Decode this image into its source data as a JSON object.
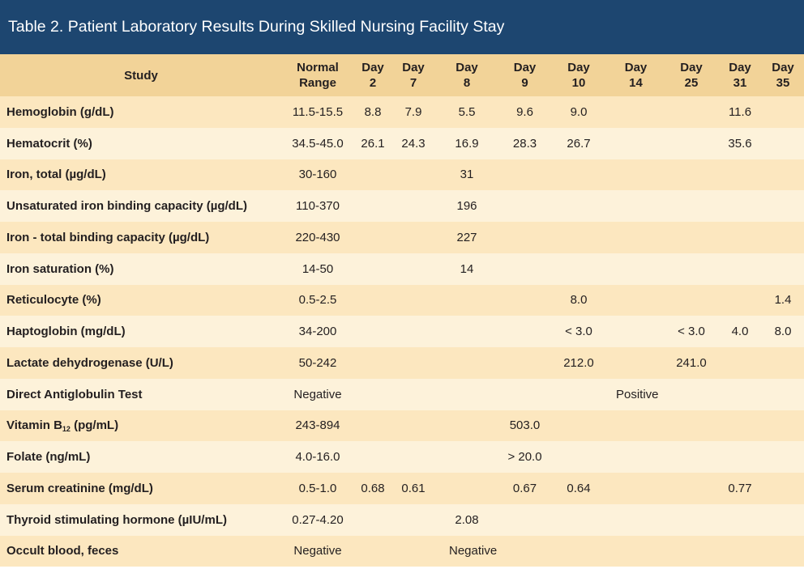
{
  "title": "Table 2. Patient Laboratory Results During Skilled Nursing Facility Stay",
  "headers": {
    "study": "Study",
    "normal1": "Normal",
    "normal2": "Range",
    "days": [
      {
        "top": "Day",
        "num": "2"
      },
      {
        "top": "Day",
        "num": "7"
      },
      {
        "top": "Day",
        "num": "8"
      },
      {
        "top": "Day",
        "num": "9"
      },
      {
        "top": "Day",
        "num": "10"
      },
      {
        "top": "Day",
        "num": "14"
      },
      {
        "top": "Day",
        "num": "25"
      },
      {
        "top": "Day",
        "num": "31"
      },
      {
        "top": "Day",
        "num": "35"
      }
    ]
  },
  "rows": [
    {
      "study": "Hemoglobin (g/dL)",
      "range": "11.5-15.5",
      "vals": [
        "8.8",
        "7.9",
        "5.5",
        "9.6",
        "9.0",
        "",
        "",
        "11.6",
        ""
      ]
    },
    {
      "study": "Hematocrit (%)",
      "range": "34.5-45.0",
      "vals": [
        "26.1",
        "24.3",
        "16.9",
        "28.3",
        "26.7",
        "",
        "",
        "35.6",
        ""
      ]
    },
    {
      "study": "Iron, total (µg/dL)",
      "range": "30-160",
      "vals": [
        "",
        "",
        "31",
        "",
        "",
        "",
        "",
        "",
        ""
      ]
    },
    {
      "study": "Unsaturated iron binding capacity (µg/dL)",
      "range": "110-370",
      "vals": [
        "",
        "",
        "196",
        "",
        "",
        "",
        "",
        "",
        ""
      ]
    },
    {
      "study": "Iron - total binding capacity (µg/dL)",
      "range": "220-430",
      "vals": [
        "",
        "",
        "227",
        "",
        "",
        "",
        "",
        "",
        ""
      ]
    },
    {
      "study": "Iron saturation (%)",
      "range": "14-50",
      "vals": [
        "",
        "",
        "14",
        "",
        "",
        "",
        "",
        "",
        ""
      ]
    },
    {
      "study": "Reticulocyte (%)",
      "range": "0.5-2.5",
      "vals": [
        "",
        "",
        "",
        "",
        "8.0",
        "",
        "",
        "",
        "1.4"
      ]
    },
    {
      "study": "Haptoglobin (mg/dL)",
      "range": "34-200",
      "vals": [
        "",
        "",
        "",
        "",
        "< 3.0",
        "",
        "< 3.0",
        "4.0",
        "8.0"
      ]
    },
    {
      "study": "Lactate dehydrogenase (U/L)",
      "range": "50-242",
      "vals": [
        "",
        "",
        "",
        "",
        "212.0",
        "",
        "241.0",
        "",
        ""
      ]
    },
    {
      "study": "Direct Antiglobulin Test",
      "range": "Negative",
      "span_value": "Positive"
    },
    {
      "study_pre": "Vitamin B",
      "study_sub": "12",
      "study_post": " (pg/mL)",
      "range": "243-894",
      "vals": [
        "",
        "",
        "",
        "503.0",
        "",
        "",
        "",
        "",
        ""
      ]
    },
    {
      "study": "Folate (ng/mL)",
      "range": "4.0-16.0",
      "vals": [
        "",
        "",
        "",
        "> 20.0",
        "",
        "",
        "",
        "",
        ""
      ]
    },
    {
      "study": "Serum creatinine (mg/dL)",
      "range": "0.5-1.0",
      "vals": [
        "0.68",
        "0.61",
        "",
        "0.67",
        "0.64",
        "",
        "",
        "0.77",
        ""
      ]
    },
    {
      "study": "Thyroid stimulating hormone (µIU/mL)",
      "range": "0.27-4.20",
      "vals": [
        "",
        "",
        "2.08",
        "",
        "",
        "",
        "",
        "",
        ""
      ]
    },
    {
      "study": "Occult blood, feces",
      "range": "Negative",
      "span_value": "Negative"
    }
  ]
}
